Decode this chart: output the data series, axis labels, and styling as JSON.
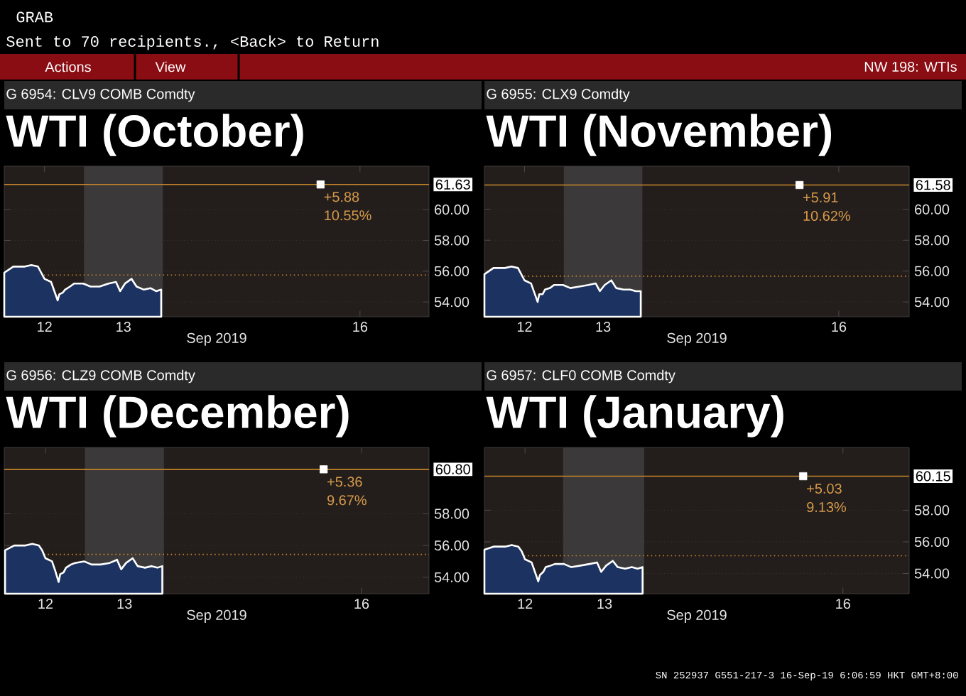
{
  "chart_data": [
    {
      "type": "area",
      "title": "WTI (October)",
      "subtitle": "G 6954: CLV9 COMB Comdty",
      "xlabel": "Sep 2019",
      "annotations": [
        "GRAB",
        "Sent to 70 recipients., <Back> to Return",
        "Actions",
        "View",
        "NW 198: WTIs",
        "+5.88",
        "10.55%"
      ],
      "x": [
        "2019-09-11T23:45",
        "2019-09-12T02:30",
        "2019-09-12T06:00",
        "2019-09-12T08:00",
        "2019-09-12T10:00",
        "2019-09-12T11:00",
        "2019-09-12T12:00",
        "2019-09-12T14:00",
        "2019-09-12T15:00",
        "2019-09-12T16:00",
        "2019-09-12T16:30",
        "2019-09-12T17:30",
        "2019-09-12T18:15",
        "2019-09-12T19:45",
        "2019-09-12T21:00",
        "2019-09-12T23:45",
        "2019-09-13T02:00",
        "2019-09-13T04:45",
        "2019-09-13T07:30",
        "2019-09-13T09:45",
        "2019-09-13T11:00",
        "2019-09-13T12:30",
        "2019-09-13T14:30",
        "2019-09-13T16:00",
        "2019-09-13T18:15",
        "2019-09-13T20:15",
        "2019-09-13T22:00",
        "2019-09-13T23:30"
      ],
      "series": [
        {
          "color": "#1c3261",
          "values": [
            55.9,
            56.3,
            56.3,
            56.4,
            56.3,
            55.9,
            55.5,
            55.3,
            54.7,
            54.1,
            54.5,
            54.6,
            54.8,
            55.0,
            55.2,
            55.2,
            55.0,
            55.0,
            55.2,
            55.3,
            54.7,
            55.2,
            55.5,
            55.0,
            54.8,
            54.9,
            54.7,
            54.8
          ]
        },
        {
          "type": "scatter",
          "color": "#ffffff",
          "marker": "square",
          "x": [
            "2019-09-16T00:00"
          ],
          "values": [
            61.63
          ]
        }
      ],
      "xlim": [
        "2019-09-11T23:45",
        "2019-09-17T09:00"
      ],
      "xticks": [
        {
          "value": "2019-09-12T12:00",
          "label": "12"
        },
        {
          "value": "2019-09-13T12:00",
          "label": "13"
        },
        {
          "value": "2019-09-16T12:00",
          "label": "16"
        }
      ],
      "ylim": [
        53.04,
        62.82
      ],
      "yticks": [
        {
          "value": 54,
          "label": "54.00"
        },
        {
          "value": 56,
          "label": "56.00"
        },
        {
          "value": 58,
          "label": "58.00"
        },
        {
          "value": 60,
          "label": "60.00"
        }
      ],
      "grid": "y",
      "ref_lines": [
        {
          "axis": "y",
          "value": 55.75,
          "color": "#c8862a",
          "line_style": "dotted"
        },
        {
          "axis": "y",
          "value": 61.63,
          "label": "61.63",
          "color": "#c8862a",
          "line_style": "solid"
        }
      ],
      "bands": [
        {
          "axis": "x",
          "from": "2019-09-13T00:00",
          "to": "2019-09-14T00:00",
          "color": "#3b3939"
        }
      ]
    },
    {
      "type": "area",
      "title": "WTI (November)",
      "subtitle": "G 6955: CLX9 Comdty",
      "xlabel": "Sep 2019",
      "annotations": [
        "+5.91",
        "10.62%"
      ],
      "x": [
        "2019-09-11T23:45",
        "2019-09-12T02:30",
        "2019-09-12T06:00",
        "2019-09-12T08:00",
        "2019-09-12T10:00",
        "2019-09-12T11:00",
        "2019-09-12T12:00",
        "2019-09-12T14:00",
        "2019-09-12T15:00",
        "2019-09-12T16:00",
        "2019-09-12T16:30",
        "2019-09-12T17:30",
        "2019-09-12T18:15",
        "2019-09-12T19:45",
        "2019-09-12T21:00",
        "2019-09-12T23:45",
        "2019-09-13T02:00",
        "2019-09-13T04:45",
        "2019-09-13T07:30",
        "2019-09-13T09:45",
        "2019-09-13T11:00",
        "2019-09-13T12:30",
        "2019-09-13T14:30",
        "2019-09-13T16:00",
        "2019-09-13T18:15",
        "2019-09-13T20:15",
        "2019-09-13T22:00",
        "2019-09-13T23:30"
      ],
      "series": [
        {
          "color": "#1c3261",
          "values": [
            55.8,
            56.2,
            56.2,
            56.3,
            56.2,
            55.8,
            55.4,
            55.2,
            54.6,
            54.0,
            54.5,
            54.5,
            54.8,
            54.9,
            55.1,
            55.1,
            54.9,
            55.0,
            55.1,
            55.2,
            54.7,
            55.1,
            55.4,
            54.9,
            54.8,
            54.8,
            54.7,
            54.7
          ]
        },
        {
          "type": "scatter",
          "color": "#ffffff",
          "marker": "square",
          "x": [
            "2019-09-16T00:00"
          ],
          "values": [
            61.58
          ]
        }
      ],
      "xlim": [
        "2019-09-11T23:45",
        "2019-09-17T09:30"
      ],
      "xticks": [
        {
          "value": "2019-09-12T12:00",
          "label": "12"
        },
        {
          "value": "2019-09-13T12:00",
          "label": "13"
        },
        {
          "value": "2019-09-16T12:00",
          "label": "16"
        }
      ],
      "ylim": [
        53.04,
        62.8
      ],
      "yticks": [
        {
          "value": 54,
          "label": "54.00"
        },
        {
          "value": 56,
          "label": "56.00"
        },
        {
          "value": 58,
          "label": "58.00"
        },
        {
          "value": 60,
          "label": "60.00"
        }
      ],
      "grid": "y",
      "ref_lines": [
        {
          "axis": "y",
          "value": 55.67,
          "color": "#c8862a",
          "line_style": "dotted"
        },
        {
          "axis": "y",
          "value": 61.58,
          "label": "61.58",
          "color": "#c8862a",
          "line_style": "solid"
        }
      ],
      "bands": [
        {
          "axis": "x",
          "from": "2019-09-13T00:00",
          "to": "2019-09-14T00:00",
          "color": "#3b3939"
        }
      ]
    },
    {
      "type": "area",
      "title": "WTI (December)",
      "subtitle": "G 6956: CLZ9 COMB Comdty",
      "xlabel": "Sep 2019",
      "annotations": [
        "+5.36",
        "9.67%"
      ],
      "x": [
        "2019-09-11T23:45",
        "2019-09-12T02:30",
        "2019-09-12T06:00",
        "2019-09-12T08:00",
        "2019-09-12T10:00",
        "2019-09-12T11:00",
        "2019-09-12T12:00",
        "2019-09-12T14:00",
        "2019-09-12T15:00",
        "2019-09-12T16:00",
        "2019-09-12T16:30",
        "2019-09-12T17:30",
        "2019-09-12T18:15",
        "2019-09-12T19:45",
        "2019-09-12T21:00",
        "2019-09-12T23:45",
        "2019-09-13T02:00",
        "2019-09-13T04:45",
        "2019-09-13T07:30",
        "2019-09-13T09:45",
        "2019-09-13T11:00",
        "2019-09-13T12:30",
        "2019-09-13T14:30",
        "2019-09-13T16:00",
        "2019-09-13T18:15",
        "2019-09-13T20:15",
        "2019-09-13T22:00",
        "2019-09-13T23:30"
      ],
      "series": [
        {
          "color": "#1c3261",
          "values": [
            55.7,
            56.0,
            56.0,
            56.1,
            56.0,
            55.7,
            55.2,
            55.0,
            54.4,
            53.7,
            54.2,
            54.3,
            54.6,
            54.8,
            54.9,
            55.0,
            54.8,
            54.8,
            54.9,
            55.1,
            54.5,
            54.9,
            55.2,
            54.7,
            54.6,
            54.7,
            54.6,
            54.7
          ]
        },
        {
          "type": "scatter",
          "color": "#ffffff",
          "marker": "square",
          "x": [
            "2019-09-16T00:30"
          ],
          "values": [
            60.8
          ]
        }
      ],
      "xlim": [
        "2019-09-11T23:30",
        "2019-09-17T08:30"
      ],
      "xticks": [
        {
          "value": "2019-09-12T12:00",
          "label": "12"
        },
        {
          "value": "2019-09-13T12:00",
          "label": "13"
        },
        {
          "value": "2019-09-16T12:00",
          "label": "16"
        }
      ],
      "ylim": [
        52.96,
        62.18
      ],
      "yticks": [
        {
          "value": 54,
          "label": "54.00"
        },
        {
          "value": 56,
          "label": "56.00"
        },
        {
          "value": 58,
          "label": "58.00"
        }
      ],
      "grid": "y",
      "ref_lines": [
        {
          "axis": "y",
          "value": 55.44,
          "color": "#c8862a",
          "line_style": "dotted"
        },
        {
          "axis": "y",
          "value": 60.8,
          "label": "60.80",
          "color": "#c8862a",
          "line_style": "solid"
        }
      ],
      "bands": [
        {
          "axis": "x",
          "from": "2019-09-13T00:00",
          "to": "2019-09-14T00:00",
          "color": "#3b3939"
        }
      ]
    },
    {
      "type": "area",
      "title": "WTI (January)",
      "subtitle": "G 6957: CLF0 COMB Comdty",
      "xlabel": "Sep 2019",
      "annotations": [
        "SN 252937 G551-217-3 16-Sep-19 6:06:59 HKT GMT+8:00",
        "+5.03",
        "9.13%"
      ],
      "x": [
        "2019-09-11T23:45",
        "2019-09-12T02:30",
        "2019-09-12T06:00",
        "2019-09-12T08:00",
        "2019-09-12T10:00",
        "2019-09-12T11:00",
        "2019-09-12T12:00",
        "2019-09-12T14:00",
        "2019-09-12T15:00",
        "2019-09-12T16:00",
        "2019-09-12T16:30",
        "2019-09-12T17:30",
        "2019-09-12T18:15",
        "2019-09-12T19:45",
        "2019-09-12T21:00",
        "2019-09-12T23:45",
        "2019-09-13T02:00",
        "2019-09-13T04:45",
        "2019-09-13T07:30",
        "2019-09-13T09:45",
        "2019-09-13T11:00",
        "2019-09-13T12:30",
        "2019-09-13T14:30",
        "2019-09-13T16:00",
        "2019-09-13T18:15",
        "2019-09-13T20:15",
        "2019-09-13T22:00",
        "2019-09-13T23:30"
      ],
      "series": [
        {
          "color": "#1c3261",
          "values": [
            55.5,
            55.7,
            55.7,
            55.8,
            55.7,
            55.4,
            54.9,
            54.7,
            54.1,
            53.5,
            53.9,
            54.1,
            54.4,
            54.5,
            54.6,
            54.6,
            54.4,
            54.5,
            54.6,
            54.7,
            54.1,
            54.5,
            54.8,
            54.4,
            54.3,
            54.4,
            54.3,
            54.4
          ]
        },
        {
          "type": "scatter",
          "color": "#ffffff",
          "marker": "square",
          "x": [
            "2019-09-16T00:00"
          ],
          "values": [
            60.15
          ]
        }
      ],
      "xlim": [
        "2019-09-11T23:45",
        "2019-09-17T08:00"
      ],
      "xticks": [
        {
          "value": "2019-09-12T12:00",
          "label": "12"
        },
        {
          "value": "2019-09-13T12:00",
          "label": "13"
        },
        {
          "value": "2019-09-16T12:00",
          "label": "16"
        }
      ],
      "ylim": [
        52.72,
        61.97
      ],
      "yticks": [
        {
          "value": 54,
          "label": "54.00"
        },
        {
          "value": 56,
          "label": "56.00"
        },
        {
          "value": 58,
          "label": "58.00"
        }
      ],
      "grid": "y",
      "ref_lines": [
        {
          "axis": "y",
          "value": 55.12,
          "color": "#c8862a",
          "line_style": "dotted"
        },
        {
          "axis": "y",
          "value": 60.15,
          "label": "60.15",
          "color": "#c8862a",
          "line_style": "solid"
        }
      ],
      "bands": [
        {
          "axis": "x",
          "from": "2019-09-12T23:30",
          "to": "2019-09-14T00:00",
          "color": "#3b3939"
        }
      ]
    }
  ]
}
